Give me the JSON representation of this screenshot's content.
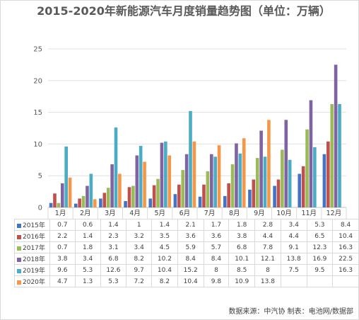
{
  "chart_data": {
    "type": "bar",
    "title": "2015-2020年新能源汽车月度销量趋势图（单位：万辆）",
    "categories": [
      "1月",
      "2月",
      "3月",
      "4月",
      "5月",
      "6月",
      "7月",
      "8月",
      "9月",
      "10月",
      "11月",
      "12月"
    ],
    "ylim": [
      0,
      25
    ],
    "yticks": [
      0,
      5,
      10,
      15,
      20,
      25
    ],
    "grid": true,
    "legend": "data-table",
    "series": [
      {
        "name": "2015年",
        "color": "#4472C4",
        "values": [
          0.7,
          0.6,
          1.4,
          1.0,
          1.4,
          2.1,
          1.7,
          1.8,
          2.8,
          3.4,
          5.3,
          8.4
        ]
      },
      {
        "name": "2016年",
        "color": "#C0504D",
        "values": [
          2.2,
          1.4,
          2.3,
          3.2,
          3.5,
          3.6,
          3.6,
          3.8,
          4.4,
          4.4,
          6.5,
          10.4
        ]
      },
      {
        "name": "2017年",
        "color": "#9BBB59",
        "values": [
          0.7,
          1.8,
          3.1,
          3.4,
          4.5,
          5.9,
          5.7,
          6.8,
          7.8,
          9.1,
          12.3,
          16.3
        ]
      },
      {
        "name": "2018年",
        "color": "#8064A2",
        "values": [
          3.8,
          3.4,
          6.8,
          8.2,
          10.2,
          8.4,
          8.4,
          10.1,
          12.1,
          13.8,
          16.9,
          22.5
        ]
      },
      {
        "name": "2019年",
        "color": "#4BACC6",
        "values": [
          9.6,
          5.3,
          12.6,
          9.7,
          10.4,
          15.2,
          8,
          8.5,
          8,
          7.5,
          9.5,
          16.3
        ]
      },
      {
        "name": "2020年",
        "color": "#F79646",
        "values": [
          4.7,
          1.3,
          5.3,
          7.2,
          8.2,
          10.4,
          9.8,
          10.9,
          13.8,
          null,
          null,
          null
        ]
      }
    ]
  },
  "footer": "数据来源：中汽协  制表：电池网/数据部"
}
